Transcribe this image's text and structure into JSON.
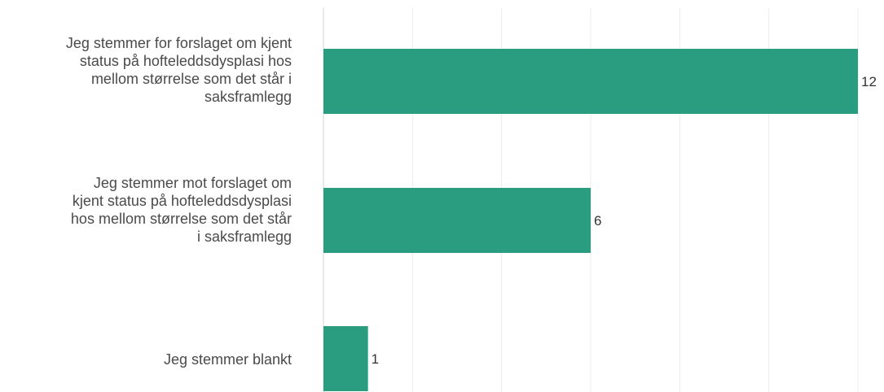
{
  "chart_data": {
    "type": "bar",
    "orientation": "horizontal",
    "categories": [
      "Jeg stemmer for forslaget om kjent status på hofteleddsdysplasi hos mellom størrelse som det står i saksframlegg",
      "Jeg stemmer mot forslaget om kjent status på hofteleddsdysplasi hos mellom størrelse som det står i saksframlegg",
      "Jeg stemmer blankt"
    ],
    "category_lines": [
      [
        "Jeg stemmer for forslaget om kjent",
        "status på hofteleddsdysplasi hos",
        "mellom størrelse som det står i",
        "saksframlegg"
      ],
      [
        "Jeg stemmer mot forslaget om",
        "kjent status på hofteleddsdysplasi",
        "hos mellom størrelse som det står",
        "i saksframlegg"
      ],
      [
        "Jeg stemmer blankt"
      ]
    ],
    "values": [
      12,
      6,
      1
    ],
    "data_labels": [
      "12",
      "6",
      "1"
    ],
    "xlim": [
      0,
      12
    ],
    "bar_color": "#2a9d80",
    "grid": true,
    "title": "",
    "xlabel": "",
    "ylabel": ""
  }
}
